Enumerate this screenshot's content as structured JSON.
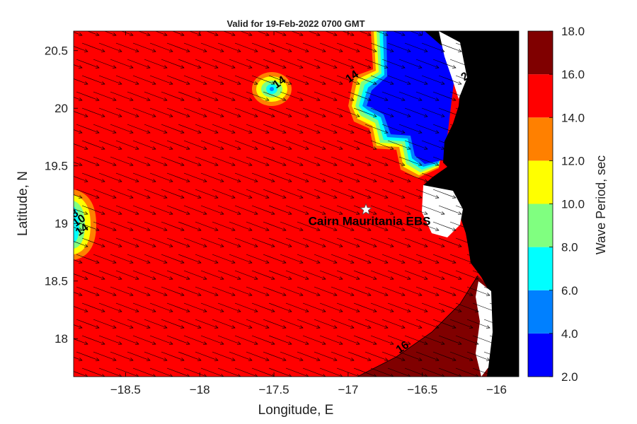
{
  "title": "Valid for 19-Feb-2022 0700 GMT",
  "x_axis": {
    "label": "Longitude, E",
    "range": [
      -18.85,
      -15.85
    ],
    "ticks": [
      -18.5,
      -18,
      -17.5,
      -17,
      -16.5,
      -16
    ],
    "tick_labels": [
      "−18.5",
      "−18",
      "−17.5",
      "−17",
      "−16.5",
      "−16"
    ]
  },
  "y_axis": {
    "label": "Latitude, N",
    "range": [
      17.67,
      20.67
    ],
    "ticks": [
      18,
      18.5,
      19,
      19.5,
      20,
      20.5
    ],
    "tick_labels": [
      "18",
      "18.5",
      "19",
      "19.5",
      "20",
      "20.5"
    ]
  },
  "colorbar": {
    "label": "Wave Period, sec",
    "tick_labels": [
      "2.0",
      "4.0",
      "6.0",
      "8.0",
      "10.0",
      "12.0",
      "14.0",
      "16.0",
      "18.0"
    ],
    "bands": [
      {
        "from": 2,
        "to": 4,
        "color": "#0000ff"
      },
      {
        "from": 4,
        "to": 6,
        "color": "#0080ff"
      },
      {
        "from": 6,
        "to": 8,
        "color": "#00ffff"
      },
      {
        "from": 8,
        "to": 10,
        "color": "#80ff80"
      },
      {
        "from": 10,
        "to": 12,
        "color": "#ffff00"
      },
      {
        "from": 12,
        "to": 14,
        "color": "#ff8000"
      },
      {
        "from": 14,
        "to": 16,
        "color": "#ff0000"
      },
      {
        "from": 16,
        "to": 18,
        "color": "#800000"
      }
    ]
  },
  "station": {
    "name": "Cairn Mauritania EBS",
    "lon": -16.88,
    "lat": 19.12
  },
  "contour_labels": [
    {
      "text": "14",
      "lon": -17.45,
      "lat": 20.2
    },
    {
      "text": "14",
      "lon": -18.78,
      "lat": 18.92
    },
    {
      "text": "10",
      "lon": -18.8,
      "lat": 19.0
    },
    {
      "text": "8",
      "lon": -18.83,
      "lat": 19.06
    },
    {
      "text": "14",
      "lon": -16.96,
      "lat": 20.25
    },
    {
      "text": "2",
      "lon": -16.2,
      "lat": 20.25
    },
    {
      "text": "16",
      "lon": -16.62,
      "lat": 17.9
    }
  ],
  "colors": {
    "sea_main": "#ff0000",
    "land": "#000000",
    "arrow": "#000000"
  }
}
